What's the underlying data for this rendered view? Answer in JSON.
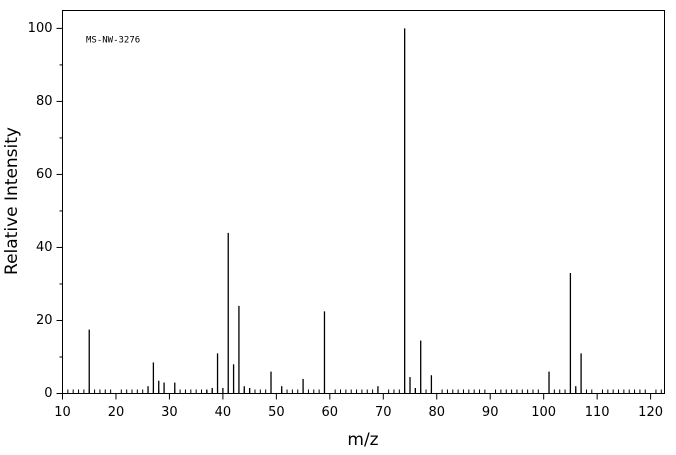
{
  "chart_data": {
    "type": "stem",
    "annotation": "MS-NW-3276",
    "xlabel": "m/z",
    "ylabel": "Relative Intensity",
    "color": "#000000",
    "x": [
      15,
      26,
      27,
      28,
      29,
      31,
      37,
      38,
      39,
      40,
      41,
      42,
      43,
      44,
      45,
      49,
      51,
      55,
      59,
      69,
      74,
      75,
      76,
      77,
      79,
      101,
      105,
      106,
      107
    ],
    "values": [
      17.5,
      2,
      8.5,
      3.5,
      3,
      3,
      1,
      1.5,
      11,
      1.5,
      44,
      8,
      24,
      2,
      1.5,
      6,
      2,
      4,
      22.5,
      2,
      100,
      4.5,
      1.5,
      14.5,
      5,
      6,
      33,
      2,
      11
    ],
    "xlim": [
      10,
      122.6
    ],
    "ylim": [
      0,
      104.9
    ],
    "xticks": [
      10,
      20,
      30,
      40,
      50,
      60,
      70,
      80,
      90,
      100,
      110,
      120
    ],
    "yticks": [
      0,
      20,
      40,
      60,
      80,
      100
    ],
    "xminorticks": [
      11,
      12,
      13,
      14,
      15,
      16,
      17,
      18,
      19,
      21,
      22,
      23,
      24,
      25,
      26,
      27,
      28,
      29,
      31,
      32,
      33,
      34,
      35,
      36,
      37,
      38,
      39,
      41,
      42,
      43,
      44,
      45,
      46,
      47,
      48,
      49,
      51,
      52,
      53,
      54,
      55,
      56,
      57,
      58,
      59,
      61,
      62,
      63,
      64,
      65,
      66,
      67,
      68,
      69,
      71,
      72,
      73,
      74,
      75,
      76,
      77,
      78,
      79,
      81,
      82,
      83,
      84,
      85,
      86,
      87,
      88,
      89,
      91,
      92,
      93,
      94,
      95,
      96,
      97,
      98,
      99,
      101,
      102,
      103,
      104,
      105,
      106,
      107,
      108,
      109,
      111,
      112,
      113,
      114,
      115,
      116,
      117,
      118,
      119,
      121,
      122
    ],
    "yminorticks": [
      10,
      30,
      50,
      70,
      90
    ]
  }
}
